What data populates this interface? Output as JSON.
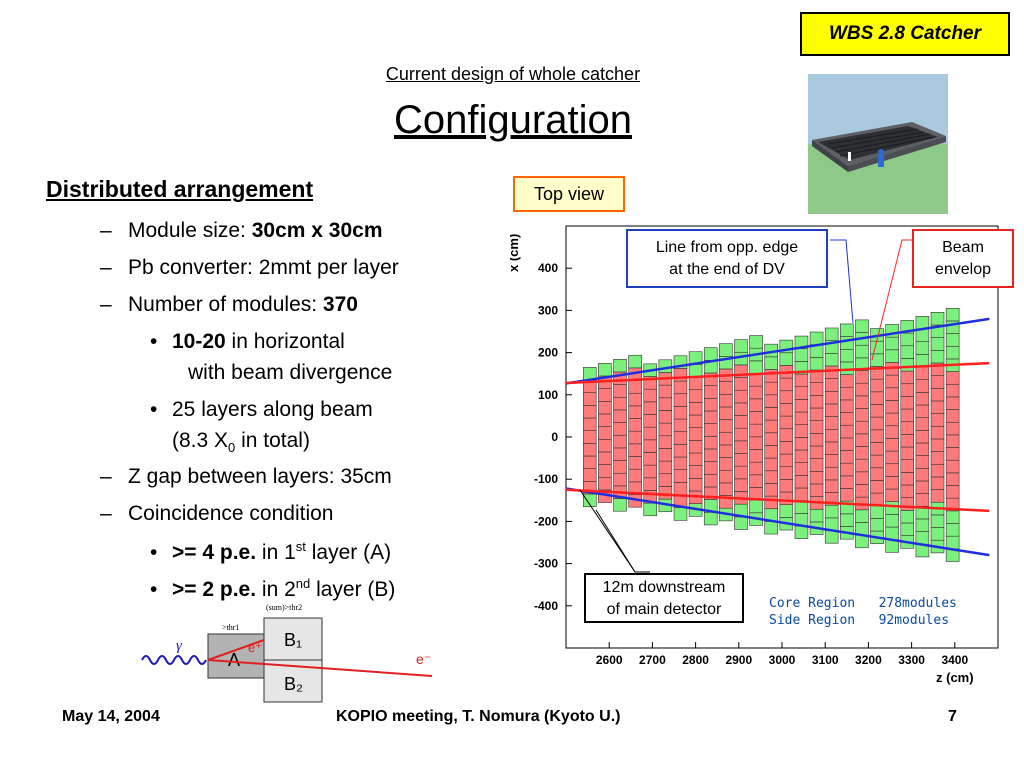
{
  "header": {
    "wbs_label": "WBS 2.8 Catcher",
    "subtitle": "Current design of whole catcher",
    "title": "Configuration"
  },
  "content": {
    "heading": "Distributed arrangement",
    "module_size_label": "Module size: ",
    "module_size_value": "30cm x 30cm",
    "pb_converter": "Pb converter: 2mmt per layer",
    "num_modules_label": "Number of modules: ",
    "num_modules_value": "370",
    "horiz_value": "10-20",
    "horiz_text": " in horizontal",
    "horiz_text2": "with beam divergence",
    "layers_text": "25 layers along beam",
    "layers_text2_pre": "(8.3 X",
    "layers_sub": "0",
    "layers_text2_post": " in total)",
    "zgap": "Z gap between layers: 35cm",
    "coincidence": "Coincidence condition",
    "cond_a_bold": ">= 4 p.e.",
    "cond_a_pre": " in 1",
    "cond_a_sup": "st",
    "cond_a_post": " layer (A)",
    "cond_b_bold": ">= 2 p.e.",
    "cond_b_pre": " in 2",
    "cond_b_sup": "nd",
    "cond_b_post": " layer (B)"
  },
  "diagram": {
    "sum_label": "(sum)>thr2",
    "thr1_label": ">thr1",
    "gamma": "γ",
    "layer_a": "A",
    "positron": "e⁺",
    "b1": "B₁",
    "b2": "B₂",
    "electron": "e⁻"
  },
  "plot": {
    "top_view": "Top view",
    "callout_line": [
      "Line from opp. edge",
      "at the end of DV"
    ],
    "callout_beam": [
      "Beam",
      "envelop"
    ],
    "callout_downstream": [
      "12m downstream",
      "of main detector"
    ],
    "legend": [
      {
        "region": "Core Region",
        "count": "278modules"
      },
      {
        "region": "Side Region",
        "count": "92modules"
      }
    ]
  },
  "chart_data": {
    "type": "scatter",
    "title": "",
    "xlabel": "z (cm)",
    "ylabel": "x (cm)",
    "xlim": [
      2500,
      3500
    ],
    "ylim": [
      -500,
      500
    ],
    "xticks": [
      2600,
      2700,
      2800,
      2900,
      3000,
      3100,
      3200,
      3300,
      3400
    ],
    "yticks": [
      400,
      300,
      200,
      100,
      0,
      -100,
      -200,
      -300,
      -400
    ],
    "layers": {
      "count": 25,
      "z_start": 2540,
      "z_step": 35,
      "module_size": 30,
      "core_half_start": 150,
      "core_half_end": 165,
      "side_half_start": 165,
      "side_half_end": 295,
      "colors": {
        "core": "#ff7b7b",
        "side": "#7cf07c"
      }
    },
    "lines": [
      {
        "name": "Line from opp. edge",
        "color": "#1f2fe0",
        "points": [
          [
            2500,
            127
          ],
          [
            3480,
            280
          ]
        ]
      },
      {
        "name": "Line from opp. edge",
        "color": "#1f2fe0",
        "points": [
          [
            2500,
            -122
          ],
          [
            3480,
            -280
          ]
        ]
      },
      {
        "name": "Beam envelop",
        "color": "#ff2020",
        "points": [
          [
            2500,
            128
          ],
          [
            3480,
            175
          ]
        ]
      },
      {
        "name": "Beam envelop",
        "color": "#ff2020",
        "points": [
          [
            2500,
            -125
          ],
          [
            3480,
            -175
          ]
        ]
      }
    ]
  },
  "footer": {
    "date": "May 14, 2004",
    "meeting": "KOPIO meeting, T. Nomura (Kyoto U.)",
    "page": "7"
  }
}
